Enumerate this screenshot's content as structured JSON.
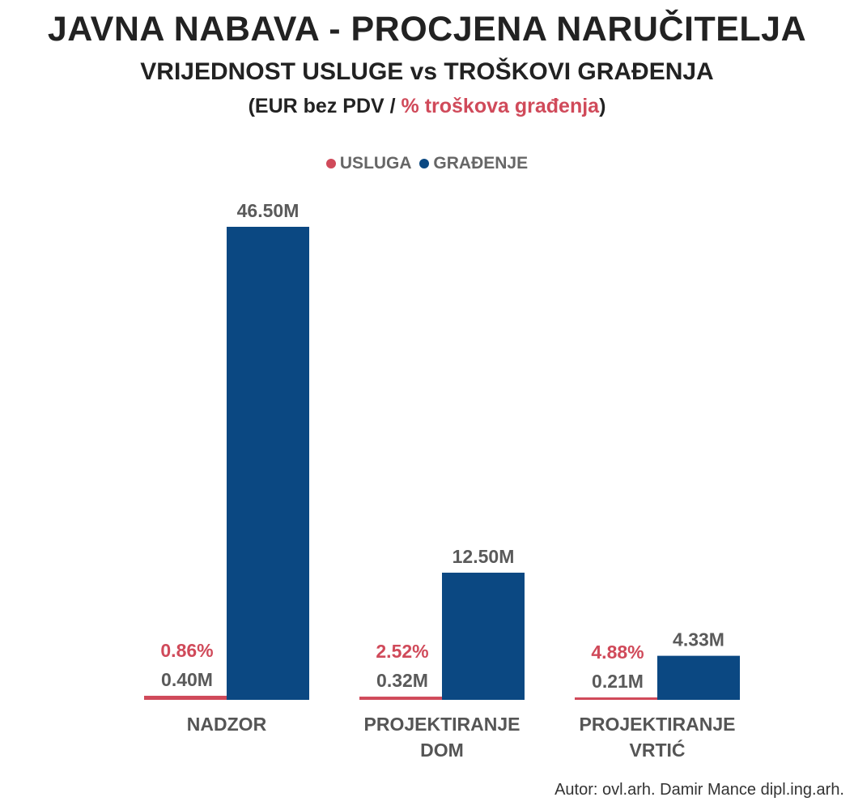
{
  "title": "JAVNA NABAVA - PROCJENA NARUČITELJA",
  "subtitle": "VRIJEDNOST USLUGE vs TROŠKOVI GRAĐENJA",
  "unit_line": {
    "prefix": "(EUR bez PDV / ",
    "accent": "% troškova građenja",
    "suffix": ")"
  },
  "footer": "Autor: ovl.arh. Damir Mance dipl.ing.arh.",
  "colors": {
    "usluga": "#d04a5a",
    "gradjenje": "#0b4882",
    "value_label": "#5a5a5a",
    "percent_label": "#d04a5a",
    "category_label": "#555555"
  },
  "chart_data": {
    "type": "bar",
    "categories": [
      [
        "NADZOR"
      ],
      [
        "PROJEKTIRANJE",
        "DOM"
      ],
      [
        "PROJEKTIRANJE",
        "VRTIĆ"
      ]
    ],
    "series": [
      {
        "name": "USLUGA",
        "values": [
          0.4,
          0.315,
          0.211
        ],
        "value_labels": [
          "0.40M",
          "0.32M",
          "0.21M"
        ],
        "percent_labels": [
          "0.86%",
          "2.52%",
          "4.88%"
        ]
      },
      {
        "name": "GRAĐENJE",
        "values": [
          46.5,
          12.5,
          4.33
        ],
        "value_labels": [
          "46.50M",
          "12.50M",
          "4.33M"
        ]
      }
    ],
    "ylim": [
      0,
      46.5
    ],
    "grid": false,
    "legend_position": "top-center"
  }
}
